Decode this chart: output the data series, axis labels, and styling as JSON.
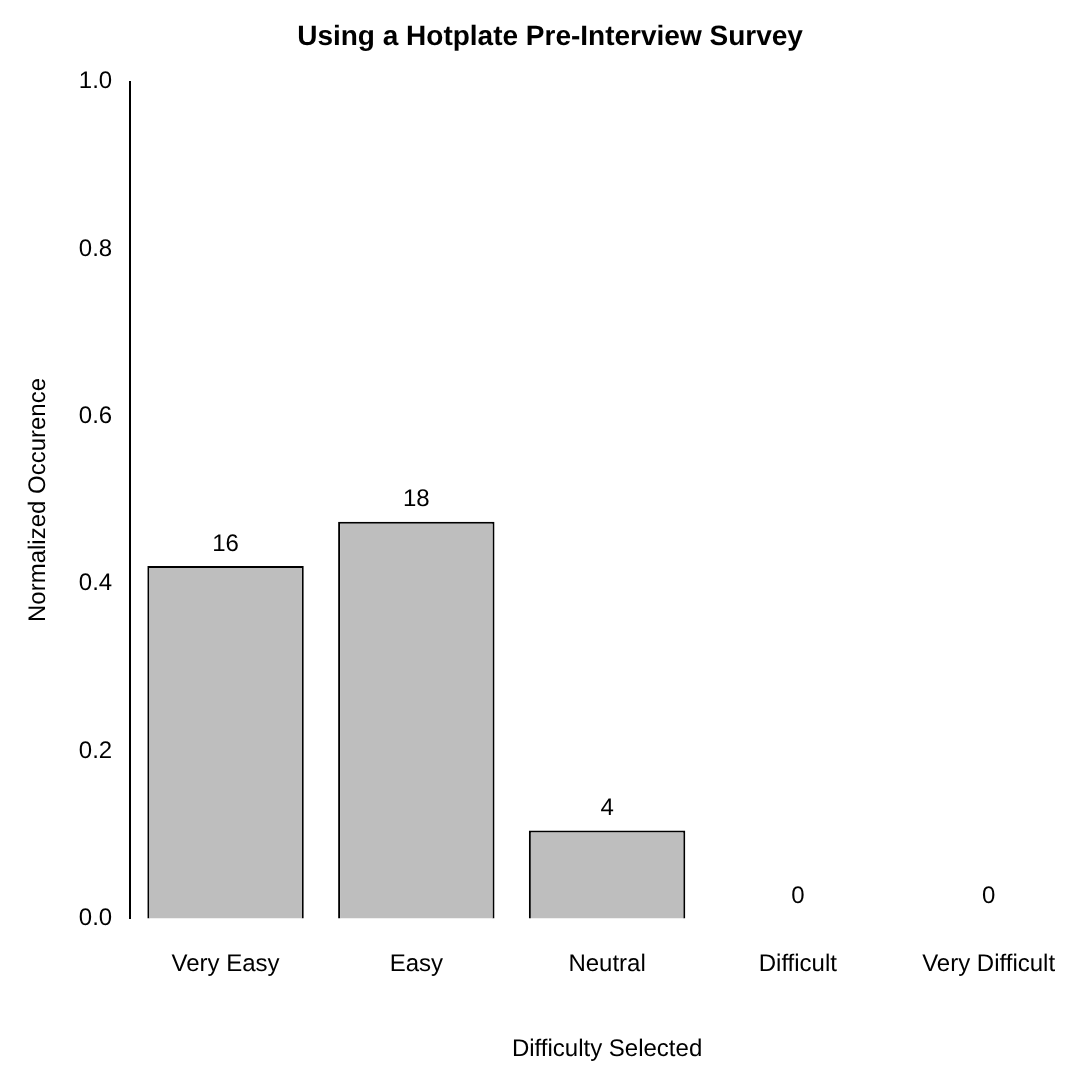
{
  "chart_data": {
    "type": "bar",
    "title": "Using a Hotplate Pre-Interview Survey",
    "xlabel": "Difficulty Selected",
    "ylabel": "Normalized Occurence",
    "categories": [
      "Very Easy",
      "Easy",
      "Neutral",
      "Difficult",
      "Very Difficult"
    ],
    "values": [
      0.421,
      0.474,
      0.105,
      0,
      0
    ],
    "annotations": [
      {
        "text": "16",
        "x": "Very Easy",
        "y": 0.421
      },
      {
        "text": "18",
        "x": "Easy",
        "y": 0.474
      },
      {
        "text": "4",
        "x": "Neutral",
        "y": 0.105
      },
      {
        "text": "0",
        "x": "Difficult",
        "y": 0
      },
      {
        "text": "0",
        "x": "Very Difficult",
        "y": 0
      }
    ],
    "color": "#bebebe",
    "ylim": [
      0,
      1
    ],
    "yticks": [
      {
        "value": 0,
        "label": "0.0"
      },
      {
        "value": 0.2,
        "label": "0.2"
      },
      {
        "value": 0.4,
        "label": "0.4"
      },
      {
        "value": 0.6,
        "label": "0.6"
      },
      {
        "value": 0.8,
        "label": "0.8"
      },
      {
        "value": 1,
        "label": "1.0"
      }
    ],
    "grid": false,
    "legend": false
  }
}
